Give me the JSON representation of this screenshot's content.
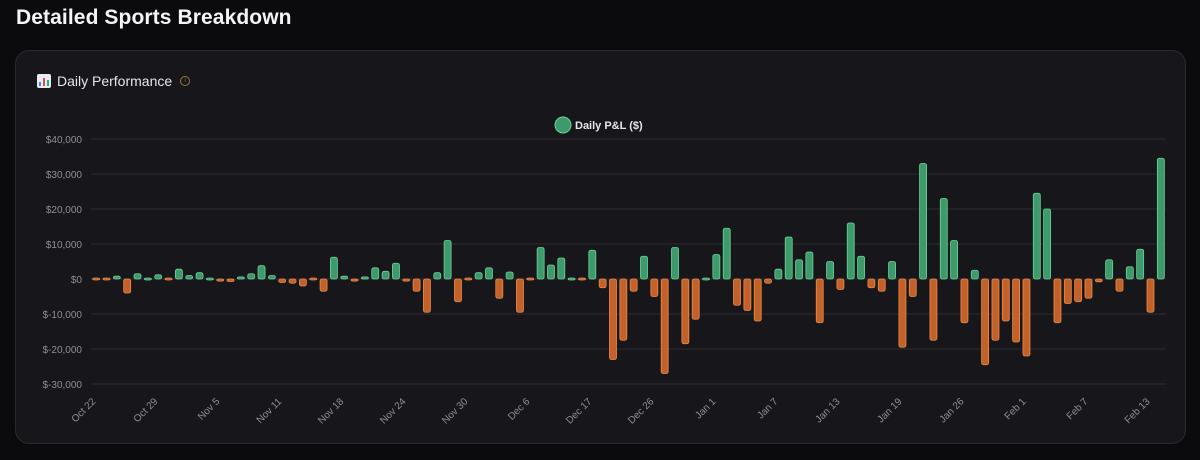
{
  "page": {
    "title": "Detailed Sports Breakdown"
  },
  "card": {
    "title": "Daily Performance",
    "chart_icon": "bar-chart-icon",
    "info_icon": "info-icon"
  },
  "colors": {
    "positive": "#3d9a6a",
    "positive_stroke": "#6fd39c",
    "negative": "#c2622a",
    "negative_stroke": "#ee8a4d",
    "grid": "#2b2b31",
    "tick": "#8e8e96"
  },
  "chart_data": {
    "type": "bar",
    "title": "",
    "xlabel": "",
    "ylabel": "",
    "ylim": [
      -35000,
      40000
    ],
    "yticks": [
      40000,
      30000,
      20000,
      10000,
      0,
      -10000,
      -20000,
      -30000
    ],
    "ytick_labels": [
      "$40,000",
      "$30,000",
      "$20,000",
      "$10,000",
      "$0",
      "$-10,000",
      "$-20,000",
      "$-30,000"
    ],
    "xtick_labels": [
      "Oct 22",
      "Oct 29",
      "Nov 5",
      "Nov 11",
      "Nov 18",
      "Nov 24",
      "Nov 30",
      "Dec 6",
      "Dec 17",
      "Dec 26",
      "Jan 1",
      "Jan 7",
      "Jan 13",
      "Jan 19",
      "Jan 26",
      "Feb 1",
      "Feb 7",
      "Feb 13"
    ],
    "xtick_indices": [
      0,
      6,
      12,
      18,
      24,
      30,
      36,
      42,
      48,
      54,
      60,
      66,
      72,
      78,
      84,
      90,
      96,
      102
    ],
    "legend": {
      "position": "top-center"
    },
    "grid": true,
    "series": [
      {
        "name": "Daily P&L ($)",
        "values": [
          -400,
          -500,
          800,
          -4000,
          1500,
          500,
          1200,
          -500,
          2800,
          1000,
          1800,
          500,
          -600,
          -700,
          600,
          1500,
          3800,
          1000,
          -1000,
          -1200,
          -2000,
          -500,
          -3500,
          6200,
          800,
          -600,
          600,
          3200,
          2200,
          4500,
          -600,
          -3500,
          -9500,
          1800,
          11000,
          -6500,
          -500,
          1800,
          3200,
          -5500,
          2000,
          -9500,
          -500,
          9000,
          4000,
          6000,
          500,
          -200,
          8200,
          -2500,
          -23000,
          -17500,
          -3500,
          6500,
          -5000,
          -27000,
          9000,
          -18500,
          -11500,
          300,
          7000,
          14500,
          -7500,
          -9000,
          -12000,
          -1200,
          2800,
          12000,
          5500,
          7700,
          -12500,
          5000,
          -3000,
          16000,
          6500,
          -2500,
          -3500,
          5000,
          -19500,
          -5000,
          33000,
          -17500,
          23000,
          11000,
          -12500,
          2500,
          -24500,
          -17500,
          -12000,
          -18000,
          -22000,
          24500,
          20000,
          -12500,
          -7000,
          -6500,
          -5500,
          -800,
          5500,
          -3500,
          3500,
          8500,
          -9500,
          34500
        ]
      }
    ]
  }
}
